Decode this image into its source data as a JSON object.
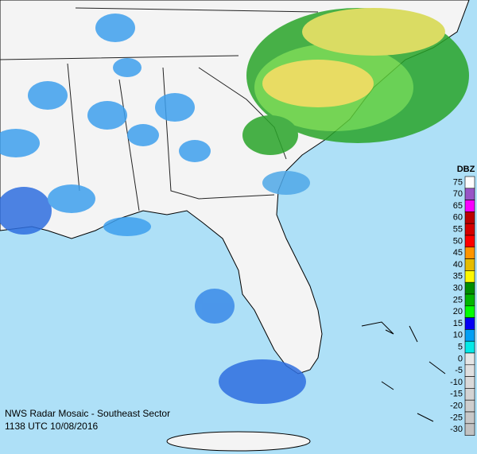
{
  "caption": {
    "title": "NWS Radar Mosaic - Southeast Sector",
    "timestamp": "1138 UTC 10/08/2016"
  },
  "legend": {
    "title": "DBZ",
    "entries": [
      {
        "label": 75,
        "color": "#fdfdfd"
      },
      {
        "label": 70,
        "color": "#9854c6"
      },
      {
        "label": 65,
        "color": "#f800fd"
      },
      {
        "label": 60,
        "color": "#bc0000"
      },
      {
        "label": 55,
        "color": "#d40000"
      },
      {
        "label": 50,
        "color": "#fd0000"
      },
      {
        "label": 45,
        "color": "#fd9500"
      },
      {
        "label": 40,
        "color": "#e5bc00"
      },
      {
        "label": 35,
        "color": "#fdf802"
      },
      {
        "label": 30,
        "color": "#008e00"
      },
      {
        "label": 25,
        "color": "#01b501"
      },
      {
        "label": 20,
        "color": "#02fd02"
      },
      {
        "label": 15,
        "color": "#0300f4"
      },
      {
        "label": 10,
        "color": "#019ff4"
      },
      {
        "label": 5,
        "color": "#04e9e7"
      },
      {
        "label": 0,
        "color": "#e6e6e6"
      },
      {
        "label": -5,
        "color": "#e0e0e0"
      },
      {
        "label": -10,
        "color": "#dadada"
      },
      {
        "label": -15,
        "color": "#d4d4d4"
      },
      {
        "label": -20,
        "color": "#cecece"
      },
      {
        "label": -25,
        "color": "#c8c8c8"
      },
      {
        "label": -30,
        "color": "#c2c2c2"
      }
    ]
  }
}
